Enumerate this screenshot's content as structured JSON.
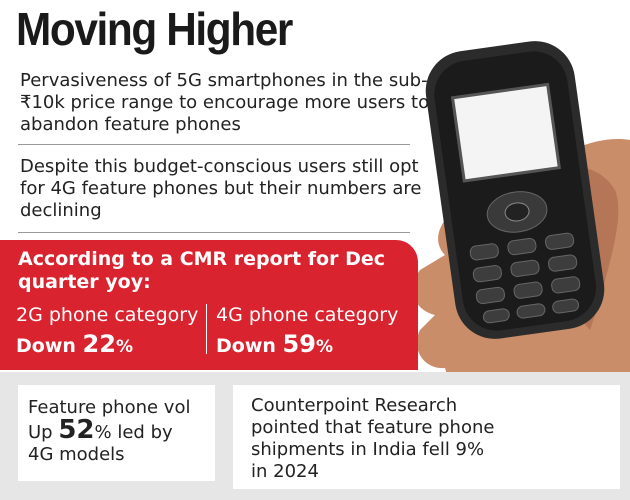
{
  "title": "Moving Higher",
  "points": [
    "Pervasiveness of 5G smartphones in the sub-₹10k price range to encourage more users to abandon feature phones",
    "Despite this budget-conscious users still opt for 4G feature phones but their numbers are declining"
  ],
  "cmr": {
    "heading": "According to a CMR report for Dec quarter yoy:",
    "items": [
      {
        "label": "2G phone category",
        "direction": "Down",
        "value": "22",
        "unit": "%"
      },
      {
        "label": "4G phone category",
        "direction": "Down",
        "value": "59",
        "unit": "%"
      }
    ]
  },
  "cards": [
    {
      "line1": "Feature phone vol",
      "direction": "Up",
      "value": "52",
      "rest": "% led by",
      "line3": "4G models"
    },
    {
      "text": "Counterpoint Research pointed that feature phone shipments in India fell 9% in 2024"
    }
  ]
}
